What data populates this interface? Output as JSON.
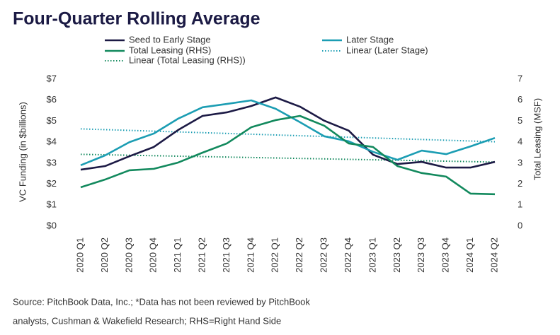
{
  "chart_data": {
    "type": "line",
    "title": "Four-Quarter Rolling Average",
    "y_label": "VC Funding (in $billions)",
    "y2_label": "Total Leasing (MSF)",
    "categories": [
      "2020 Q1",
      "2020 Q2",
      "2020 Q3",
      "2020 Q4",
      "2021 Q1",
      "2021 Q2",
      "2021 Q3",
      "2021 Q4",
      "2022 Q1",
      "2022 Q2",
      "2022 Q3",
      "2022 Q4",
      "2023 Q1",
      "2023 Q2",
      "2023 Q3",
      "2023 Q4",
      "2024 Q1",
      "2024 Q2"
    ],
    "series": [
      {
        "name": "Seed to Early Stage",
        "color": "#1c1a45",
        "values": [
          2.69,
          2.86,
          3.33,
          3.77,
          4.58,
          5.25,
          5.42,
          5.72,
          6.13,
          5.69,
          5.02,
          4.55,
          3.4,
          2.96,
          3.06,
          2.79,
          2.79,
          3.06
        ]
      },
      {
        "name": "Later Stage",
        "color": "#1b9db3",
        "values": [
          2.9,
          3.37,
          4.0,
          4.41,
          5.12,
          5.66,
          5.82,
          5.99,
          5.59,
          4.95,
          4.28,
          4.04,
          3.54,
          3.16,
          3.6,
          3.43,
          3.8,
          4.2
        ]
      },
      {
        "name": "Total Leasing (RHS)",
        "color": "#12895d",
        "axis": "y2",
        "values": [
          1.85,
          2.22,
          2.66,
          2.73,
          3.03,
          3.5,
          3.94,
          4.71,
          5.05,
          5.25,
          4.78,
          3.94,
          3.77,
          2.86,
          2.53,
          2.36,
          1.55,
          1.52
        ]
      }
    ],
    "trendlines": [
      {
        "name": "Linear (Later Stage)",
        "of_series": 1,
        "kind": "linear"
      },
      {
        "name": "Linear (Total Leasing (RHS))",
        "of_series": 2,
        "kind": "linear"
      }
    ],
    "ylim": [
      0,
      7
    ],
    "yticks": [
      {
        "value": 0,
        "label": "$0"
      },
      {
        "value": 1,
        "label": "$1"
      },
      {
        "value": 2,
        "label": "$2"
      },
      {
        "value": 3,
        "label": "$3"
      },
      {
        "value": 4,
        "label": "$4"
      },
      {
        "value": 5,
        "label": "$5"
      },
      {
        "value": 6,
        "label": "$6"
      },
      {
        "value": 7,
        "label": "$7"
      }
    ],
    "y2lim": [
      0,
      7
    ],
    "y2ticks": [
      0,
      1,
      2,
      3,
      4,
      5,
      6,
      7
    ],
    "source": [
      "Source: PitchBook Data, Inc.; *Data has not been reviewed by PitchBook",
      "analysts, Cushman & Wakefield Research; RHS=Right Hand Side"
    ]
  }
}
